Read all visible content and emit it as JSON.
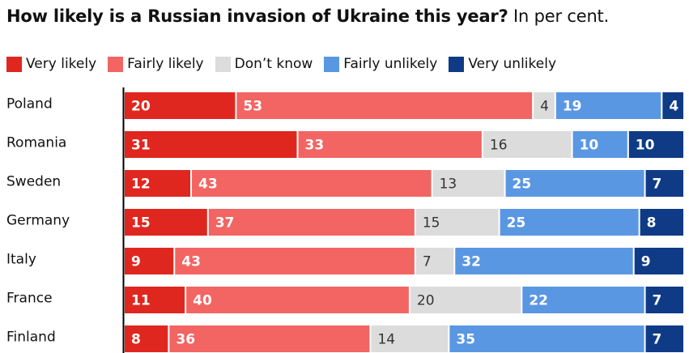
{
  "title": "How likely is a Russian invasion of Ukraine this year?",
  "subtitle": "In per cent.",
  "colors": {
    "very_likely": "#e0271f",
    "fairly_likely": "#f26563",
    "dont_know": "#dcdcdc",
    "fairly_unlikely": "#5a97e3",
    "very_unlikely": "#0f3b86",
    "axis": "#000000"
  },
  "chart_data": {
    "type": "bar",
    "orientation": "horizontal",
    "stacked": true,
    "title": "How likely is a Russian invasion of Ukraine this year?",
    "subtitle": "In per cent.",
    "legend_position": "top-left",
    "categories": [
      "Poland",
      "Romania",
      "Sweden",
      "Germany",
      "Italy",
      "France",
      "Finland"
    ],
    "series": [
      {
        "name": "Very likely",
        "color": "#e0271f",
        "label_color": "#ffffff",
        "values": [
          20,
          31,
          12,
          15,
          9,
          11,
          8
        ]
      },
      {
        "name": "Fairly likely",
        "color": "#f26563",
        "label_color": "#ffffff",
        "values": [
          53,
          33,
          43,
          37,
          43,
          40,
          36
        ]
      },
      {
        "name": "Don’t know",
        "color": "#dcdcdc",
        "label_color": "#333333",
        "values": [
          4,
          16,
          13,
          15,
          7,
          20,
          14
        ]
      },
      {
        "name": "Fairly unlikely",
        "color": "#5a97e3",
        "label_color": "#ffffff",
        "values": [
          19,
          10,
          25,
          25,
          32,
          22,
          35
        ]
      },
      {
        "name": "Very unlikely",
        "color": "#0f3b86",
        "label_color": "#ffffff",
        "values": [
          4,
          10,
          7,
          8,
          9,
          7,
          7
        ]
      }
    ]
  }
}
